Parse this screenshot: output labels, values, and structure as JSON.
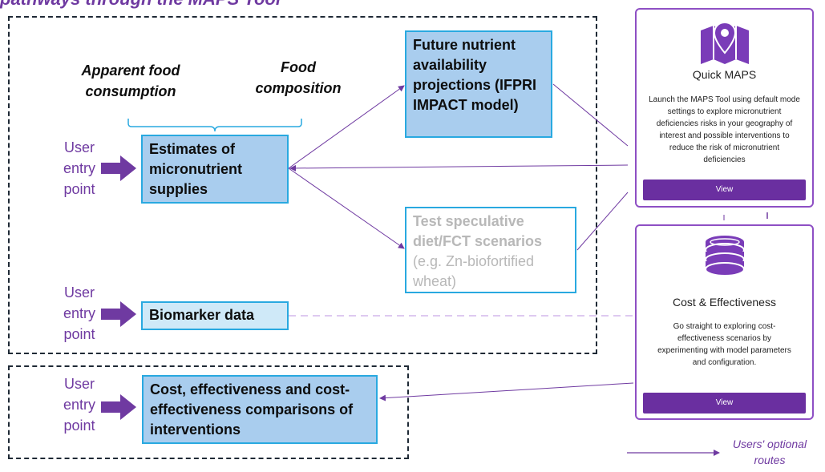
{
  "heading": "pathways through the MAPS Tool",
  "inputs": {
    "apparent_food_consumption": "Apparent food consumption",
    "food_composition": "Food composition"
  },
  "entry_point": {
    "line1": "User",
    "line2": "entry",
    "line3": "point"
  },
  "boxes": {
    "estimates": "Estimates of micronutrient supplies",
    "future_projections": "Future nutrient availability projections (IFPRI IMPACT model)",
    "speculative_bold": "Test speculative diet/FCT scenarios",
    "speculative_note": "(e.g. Zn-biofortified wheat)",
    "biomarker": "Biomarker data",
    "cost_effectiveness": "Cost, effectiveness and cost-effectiveness comparisons of interventions"
  },
  "cards": {
    "quick_maps": {
      "icon": "map-pin-icon",
      "title": "Quick MAPS",
      "description": "Launch the MAPS Tool using default mode settings to explore micronutrient deficiencies risks in your geography of interest and possible interventions to reduce the risk of micronutrient deficiencies",
      "button": "View"
    },
    "cost_effectiveness": {
      "icon": "coins-stack-icon",
      "title": "Cost & Effectiveness",
      "description": "Go straight to exploring cost-effectiveness scenarios by experimenting with model parameters and configuration.",
      "button": "View"
    }
  },
  "legend": {
    "label": "Users' optional routes"
  },
  "colors": {
    "purple": "#6f3aa1",
    "box_blue": "#a9cdee",
    "box_light": "#cfe9f8",
    "box_border": "#29a9e0",
    "button": "#6a2fa0"
  }
}
